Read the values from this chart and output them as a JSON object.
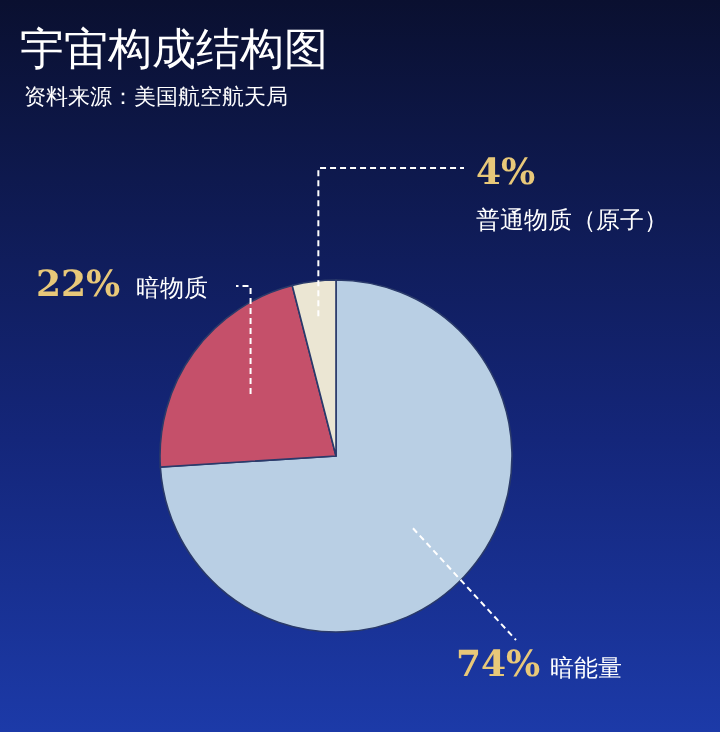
{
  "chart_data": {
    "type": "pie",
    "title": "宇宙构成结构图",
    "subtitle": "资料来源：美国航空航天局",
    "categories": [
      "暗能量",
      "暗物质",
      "普通物质（原子）"
    ],
    "values": [
      74,
      22,
      4
    ],
    "colors": [
      "#b9cfe4",
      "#c5506a",
      "#ebe6d3"
    ],
    "value_labels": [
      "74%",
      "22%",
      "4%"
    ]
  }
}
